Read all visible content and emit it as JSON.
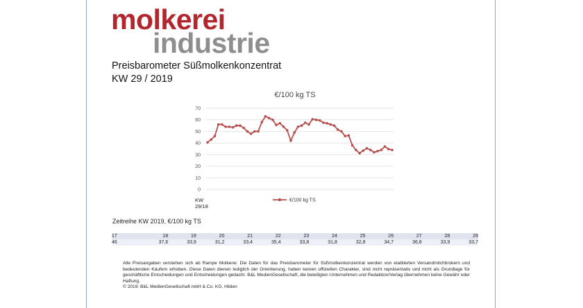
{
  "logo": {
    "line1": "molkerei",
    "line2": "industrie"
  },
  "title": {
    "line1": "Preisbarometer Süßmolkenkonzentrat",
    "line2": "KW 29 / 2019"
  },
  "colors": {
    "series": "#b5504e",
    "logo_red": "#b3262e",
    "logo_gray": "#8e8e8e"
  },
  "chart_data": {
    "type": "line",
    "title": "€/100 kg TS",
    "xlabel": "KW 29/18",
    "ylabel": "",
    "ylim": [
      0,
      70
    ],
    "yticks": [
      0,
      10,
      20,
      30,
      40,
      50,
      60,
      70
    ],
    "grid": true,
    "legend": "bottom",
    "series": [
      {
        "name": "€/100 kg TS",
        "values": [
          40.5,
          43,
          46,
          56,
          56,
          54,
          54,
          53.5,
          55,
          55,
          53,
          50,
          48,
          50,
          50,
          58,
          63,
          61.5,
          60,
          55.5,
          57,
          54,
          51,
          42,
          49,
          54,
          55,
          57.5,
          56,
          60.5,
          60,
          59.5,
          57.5,
          57,
          56,
          55,
          51.5,
          50,
          46,
          46.5,
          38,
          34,
          31.2,
          33.4,
          35.4,
          34,
          32,
          33,
          34,
          37,
          34.7,
          34
        ]
      }
    ]
  },
  "series_table": {
    "label": "Zeitreihe KW 2019, €/100 kg TS",
    "weeks": [
      "17",
      "18",
      "19",
      "20",
      "21",
      "22",
      "23",
      "24",
      "25",
      "26",
      "27",
      "28",
      "29"
    ],
    "values": [
      "46",
      "37,6",
      "33,9",
      "31,2",
      "33,4",
      "35,4",
      "33,8",
      "31,8",
      "32,8",
      "34,7",
      "36,8",
      "33,9",
      "33,7"
    ]
  },
  "note": {
    "text": "Alle Preisangaben verstehen sich ab Rampe Molkerei. Die Daten für das Preisbarometer für Süßmolkenkonzentrat werden von etablierten Versandmilchbrokern und bedeutenden Käufern erhoben. Diese Daten dienen lediglich der Orientierung, haben keinen offiziellen Charakter, sind nicht repräsentativ und nicht als Grundlage für geschäftliche Entscheidungen und Entscheidungen gedacht. B&L MedienGesellschaft, die beteiligten Unternehmen und Redaktion/Verlag übernehmen keine Gewähr oder Haftung.",
    "copyright": "© 2019: B&L MedienGesellschaft mbH & Co. KG, Hilden"
  }
}
